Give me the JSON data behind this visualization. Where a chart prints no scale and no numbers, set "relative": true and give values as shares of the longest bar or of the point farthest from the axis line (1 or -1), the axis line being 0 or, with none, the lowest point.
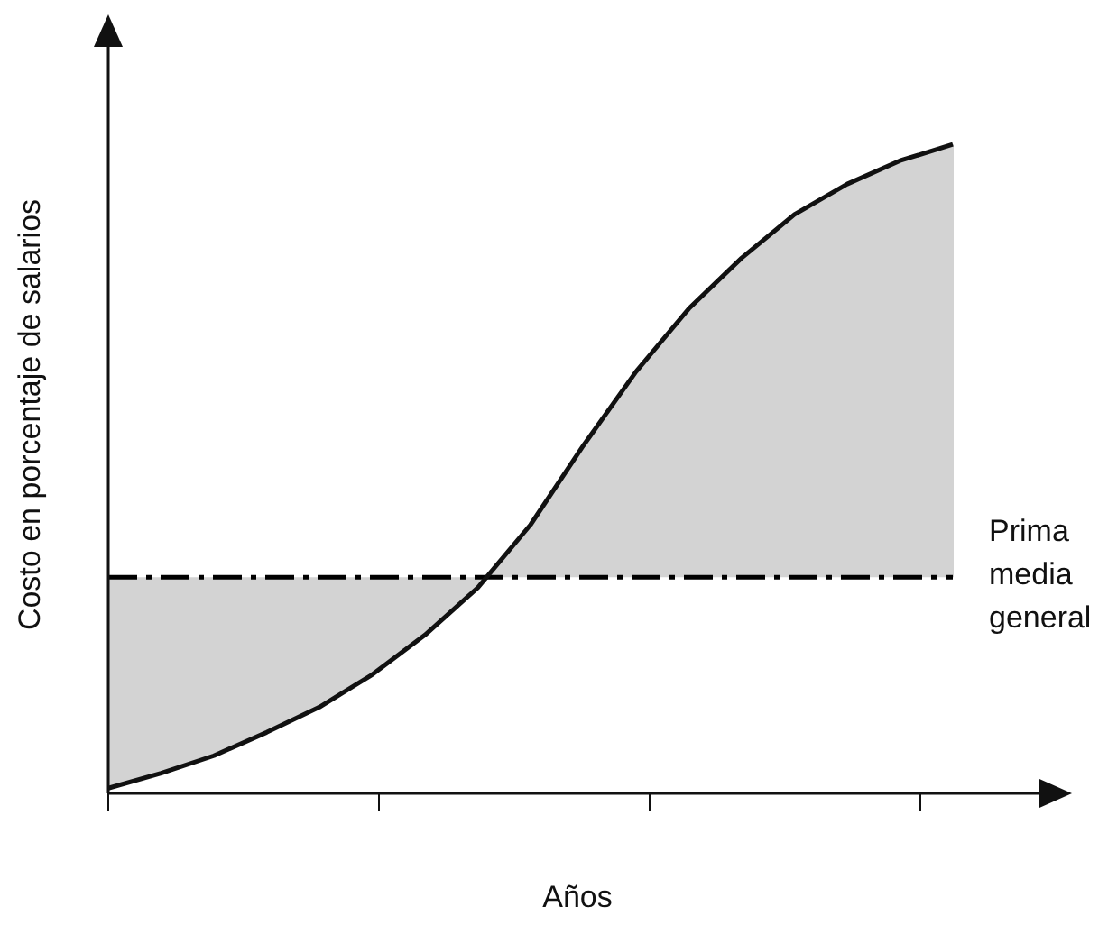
{
  "chart_data": {
    "type": "line",
    "relative": true,
    "xlabel": "Años",
    "ylabel": "Costo en porcentaje de salarios",
    "categories": [
      null,
      null,
      null,
      null,
      null,
      null,
      null,
      null,
      null,
      null,
      null,
      null,
      null,
      null,
      null,
      null,
      null
    ],
    "series": [
      {
        "color": "#111111",
        "values": [
          0.008,
          0.031,
          0.058,
          0.094,
          0.133,
          0.183,
          0.244,
          0.317,
          0.414,
          0.536,
          0.65,
          0.747,
          0.825,
          0.892,
          0.939,
          0.975,
          1
        ]
      }
    ],
    "ref_lines": [
      {
        "axis": "y",
        "value": 0.333,
        "label": "Prima media general",
        "line_style": "dashed",
        "color": "#000000"
      }
    ]
  }
}
